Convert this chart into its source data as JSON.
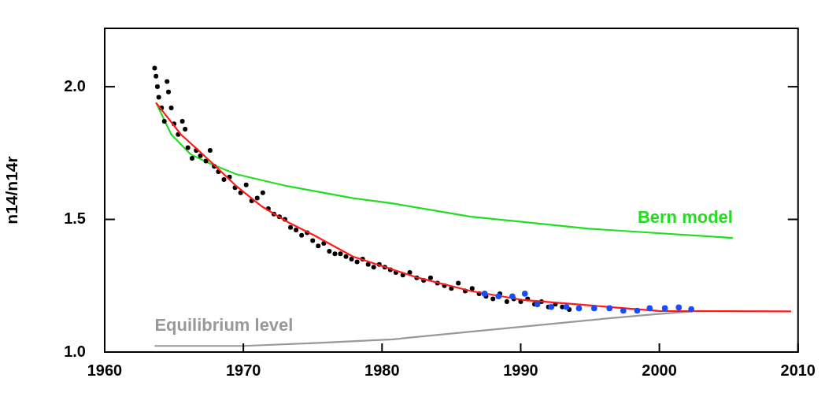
{
  "chart_data": {
    "type": "line",
    "ylabel": "n14/n14r",
    "xlim": [
      1960,
      2010
    ],
    "xticks": [
      1960,
      1970,
      1980,
      1990,
      2000,
      2010
    ],
    "ylim": [
      1.0,
      2.22
    ],
    "yticks": [
      {
        "value": 1,
        "label": "1.0"
      },
      {
        "value": 1.5,
        "label": "1.5"
      },
      {
        "value": 2,
        "label": "2.0"
      }
    ],
    "legend": false,
    "series": [
      {
        "name": "Bern model",
        "color": "#22dd22",
        "x": [
          1963.7,
          1964.8,
          1966.2,
          1967.6,
          1969.5,
          1973.2,
          1977.9,
          1980.8,
          1986.4,
          1990.2,
          1994.9,
          2005.3
        ],
        "values": [
          1.94,
          1.82,
          1.745,
          1.71,
          1.67,
          1.625,
          1.58,
          1.56,
          1.51,
          1.49,
          1.465,
          1.43
        ]
      },
      {
        "name": "Equilibrium level",
        "color": "#999999",
        "x": [
          1963.6,
          1970,
          1975.1,
          1980.8,
          1986.4,
          1992,
          1995.9,
          1999.6,
          2002.4
        ],
        "values": [
          1.023,
          1.023,
          1.034,
          1.048,
          1.077,
          1.105,
          1.125,
          1.142,
          1.153
        ]
      },
      {
        "type": "scatter",
        "marker": "circle",
        "color": "#000000",
        "x": [
          1963.6,
          1963.7,
          1963.8,
          1963.9,
          1964.1,
          1964.3,
          1964.5,
          1964.6,
          1964.8,
          1965.0,
          1965.3,
          1965.6,
          1965.8,
          1966.0,
          1966.3,
          1966.6,
          1966.9,
          1967.3,
          1967.6,
          1967.9,
          1968.2,
          1968.6,
          1969.0,
          1969.4,
          1969.8,
          1970.2,
          1970.6,
          1971.0,
          1971.4,
          1971.8,
          1972.2,
          1972.6,
          1973.0,
          1973.4,
          1973.8,
          1974.2,
          1974.6,
          1975.0,
          1975.4,
          1975.8,
          1976.2,
          1976.6,
          1977.0,
          1977.4,
          1977.8,
          1978.2,
          1978.6,
          1979.0,
          1979.4,
          1979.8,
          1980.2,
          1980.6,
          1981.0,
          1981.5,
          1982.0,
          1982.5,
          1983.0,
          1983.5,
          1984.0,
          1984.5,
          1985.0,
          1985.5,
          1986.0,
          1986.5,
          1987.0,
          1987.5,
          1988.0,
          1988.5,
          1989.0,
          1989.5,
          1990.0,
          1990.5,
          1991.0,
          1991.5,
          1992.0,
          1992.5,
          1993.0,
          1993.5
        ],
        "values": [
          2.07,
          2.04,
          2.0,
          1.96,
          1.92,
          1.87,
          2.02,
          1.98,
          1.92,
          1.86,
          1.82,
          1.87,
          1.84,
          1.77,
          1.73,
          1.76,
          1.74,
          1.72,
          1.76,
          1.7,
          1.68,
          1.65,
          1.66,
          1.62,
          1.6,
          1.63,
          1.57,
          1.58,
          1.6,
          1.54,
          1.52,
          1.51,
          1.5,
          1.47,
          1.46,
          1.44,
          1.45,
          1.42,
          1.4,
          1.41,
          1.38,
          1.37,
          1.37,
          1.36,
          1.35,
          1.34,
          1.35,
          1.33,
          1.32,
          1.33,
          1.32,
          1.31,
          1.3,
          1.29,
          1.3,
          1.28,
          1.27,
          1.28,
          1.26,
          1.25,
          1.24,
          1.26,
          1.23,
          1.24,
          1.22,
          1.21,
          1.2,
          1.22,
          1.19,
          1.2,
          1.19,
          1.2,
          1.18,
          1.19,
          1.17,
          1.18,
          1.17,
          1.16
        ]
      },
      {
        "color": "#ff1a1a",
        "x": [
          1963.7,
          1965.5,
          1967.6,
          1969.5,
          1971.3,
          1973.2,
          1975.1,
          1977.9,
          1982.6,
          1986.4,
          1990.2,
          1994.9,
          2000,
          2009.5
        ],
        "values": [
          1.94,
          1.82,
          1.72,
          1.625,
          1.55,
          1.49,
          1.44,
          1.36,
          1.28,
          1.23,
          1.196,
          1.176,
          1.155,
          1.153
        ]
      },
      {
        "type": "scatter",
        "marker": "circle",
        "color": "#1a4cff",
        "x": [
          1987.4,
          1988.4,
          1989.4,
          1990.3,
          1991.2,
          1992.2,
          1993.3,
          1994.2,
          1995.3,
          1996.4,
          1997.4,
          1998.4,
          1999.3,
          2000.4,
          2001.4,
          2002.3
        ],
        "values": [
          1.22,
          1.21,
          1.21,
          1.22,
          1.18,
          1.17,
          1.17,
          1.165,
          1.165,
          1.165,
          1.156,
          1.156,
          1.165,
          1.165,
          1.168,
          1.162
        ]
      }
    ]
  }
}
